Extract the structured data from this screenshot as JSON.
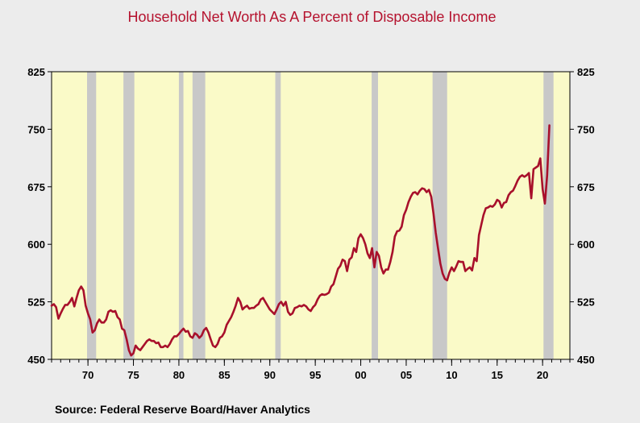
{
  "chart_data": {
    "type": "line",
    "title": "Household Net Worth As A Percent of Disposable Income",
    "source": "Source:   Federal Reserve Board/Haver Analytics",
    "xlabel": "",
    "ylabel": "",
    "xlim": [
      1966.0,
      2023.0
    ],
    "ylim": [
      450,
      825
    ],
    "yticks": [
      450,
      525,
      600,
      675,
      750,
      825
    ],
    "xticks": [
      {
        "value": 1970,
        "label": "70"
      },
      {
        "value": 1975,
        "label": "75"
      },
      {
        "value": 1980,
        "label": "80"
      },
      {
        "value": 1985,
        "label": "85"
      },
      {
        "value": 1990,
        "label": "90"
      },
      {
        "value": 1995,
        "label": "95"
      },
      {
        "value": 2000,
        "label": "00"
      },
      {
        "value": 2005,
        "label": "05"
      },
      {
        "value": 2010,
        "label": "10"
      },
      {
        "value": 2015,
        "label": "15"
      },
      {
        "value": 2020,
        "label": "20"
      }
    ],
    "recessions": [
      [
        1969.9,
        1970.9
      ],
      [
        1973.9,
        1975.1
      ],
      [
        1980.0,
        1980.5
      ],
      [
        1981.5,
        1982.9
      ],
      [
        1990.6,
        1991.2
      ],
      [
        2001.2,
        2001.9
      ],
      [
        2007.9,
        2009.5
      ],
      [
        2020.1,
        2021.2
      ]
    ],
    "series": [
      {
        "color": "#a8102b",
        "points": [
          [
            1966.0,
            520
          ],
          [
            1966.25,
            522
          ],
          [
            1966.5,
            518
          ],
          [
            1966.75,
            503
          ],
          [
            1967.0,
            510
          ],
          [
            1967.25,
            516
          ],
          [
            1967.5,
            521
          ],
          [
            1967.75,
            521
          ],
          [
            1968.0,
            525
          ],
          [
            1968.25,
            530
          ],
          [
            1968.5,
            519
          ],
          [
            1968.75,
            530
          ],
          [
            1969.0,
            540
          ],
          [
            1969.25,
            545
          ],
          [
            1969.5,
            540
          ],
          [
            1969.75,
            520
          ],
          [
            1970.0,
            510
          ],
          [
            1970.25,
            502
          ],
          [
            1970.5,
            485
          ],
          [
            1970.75,
            488
          ],
          [
            1971.0,
            497
          ],
          [
            1971.25,
            502
          ],
          [
            1971.5,
            498
          ],
          [
            1971.75,
            498
          ],
          [
            1972.0,
            502
          ],
          [
            1972.25,
            512
          ],
          [
            1972.5,
            514
          ],
          [
            1972.75,
            512
          ],
          [
            1973.0,
            513
          ],
          [
            1973.25,
            505
          ],
          [
            1973.5,
            502
          ],
          [
            1973.75,
            490
          ],
          [
            1974.0,
            488
          ],
          [
            1974.25,
            476
          ],
          [
            1974.5,
            462
          ],
          [
            1974.75,
            455
          ],
          [
            1975.0,
            458
          ],
          [
            1975.25,
            468
          ],
          [
            1975.5,
            464
          ],
          [
            1975.75,
            462
          ],
          [
            1976.0,
            466
          ],
          [
            1976.25,
            470
          ],
          [
            1976.5,
            474
          ],
          [
            1976.75,
            476
          ],
          [
            1977.0,
            474
          ],
          [
            1977.25,
            474
          ],
          [
            1977.5,
            471
          ],
          [
            1977.75,
            472
          ],
          [
            1978.0,
            466
          ],
          [
            1978.25,
            466
          ],
          [
            1978.5,
            468
          ],
          [
            1978.75,
            466
          ],
          [
            1979.0,
            470
          ],
          [
            1979.25,
            476
          ],
          [
            1979.5,
            480
          ],
          [
            1979.75,
            480
          ],
          [
            1980.0,
            483
          ],
          [
            1980.25,
            487
          ],
          [
            1980.5,
            490
          ],
          [
            1980.75,
            486
          ],
          [
            1981.0,
            487
          ],
          [
            1981.25,
            480
          ],
          [
            1981.5,
            478
          ],
          [
            1981.75,
            484
          ],
          [
            1982.0,
            482
          ],
          [
            1982.25,
            478
          ],
          [
            1982.5,
            481
          ],
          [
            1982.75,
            488
          ],
          [
            1983.0,
            491
          ],
          [
            1983.25,
            485
          ],
          [
            1983.5,
            476
          ],
          [
            1983.75,
            468
          ],
          [
            1984.0,
            466
          ],
          [
            1984.25,
            470
          ],
          [
            1984.5,
            478
          ],
          [
            1984.75,
            480
          ],
          [
            1985.0,
            485
          ],
          [
            1985.25,
            495
          ],
          [
            1985.5,
            500
          ],
          [
            1985.75,
            505
          ],
          [
            1986.0,
            512
          ],
          [
            1986.25,
            520
          ],
          [
            1986.5,
            530
          ],
          [
            1986.75,
            525
          ],
          [
            1987.0,
            515
          ],
          [
            1987.25,
            518
          ],
          [
            1987.5,
            520
          ],
          [
            1987.75,
            516
          ],
          [
            1988.0,
            517
          ],
          [
            1988.25,
            517
          ],
          [
            1988.5,
            520
          ],
          [
            1988.75,
            522
          ],
          [
            1989.0,
            528
          ],
          [
            1989.25,
            530
          ],
          [
            1989.5,
            525
          ],
          [
            1989.75,
            520
          ],
          [
            1990.0,
            515
          ],
          [
            1990.25,
            512
          ],
          [
            1990.5,
            509
          ],
          [
            1990.75,
            515
          ],
          [
            1991.0,
            522
          ],
          [
            1991.25,
            525
          ],
          [
            1991.5,
            520
          ],
          [
            1991.75,
            525
          ],
          [
            1992.0,
            512
          ],
          [
            1992.25,
            508
          ],
          [
            1992.5,
            510
          ],
          [
            1992.75,
            517
          ],
          [
            1993.0,
            518
          ],
          [
            1993.25,
            520
          ],
          [
            1993.5,
            519
          ],
          [
            1993.75,
            521
          ],
          [
            1994.0,
            519
          ],
          [
            1994.25,
            515
          ],
          [
            1994.5,
            513
          ],
          [
            1994.75,
            518
          ],
          [
            1995.0,
            521
          ],
          [
            1995.25,
            528
          ],
          [
            1995.5,
            533
          ],
          [
            1995.75,
            535
          ],
          [
            1996.0,
            534
          ],
          [
            1996.25,
            535
          ],
          [
            1996.5,
            537
          ],
          [
            1996.75,
            545
          ],
          [
            1997.0,
            548
          ],
          [
            1997.25,
            558
          ],
          [
            1997.5,
            568
          ],
          [
            1997.75,
            572
          ],
          [
            1998.0,
            580
          ],
          [
            1998.25,
            578
          ],
          [
            1998.5,
            565
          ],
          [
            1998.75,
            580
          ],
          [
            1999.0,
            583
          ],
          [
            1999.25,
            595
          ],
          [
            1999.5,
            590
          ],
          [
            1999.75,
            608
          ],
          [
            2000.0,
            613
          ],
          [
            2000.25,
            608
          ],
          [
            2000.5,
            600
          ],
          [
            2000.75,
            588
          ],
          [
            2001.0,
            582
          ],
          [
            2001.25,
            595
          ],
          [
            2001.5,
            570
          ],
          [
            2001.75,
            590
          ],
          [
            2002.0,
            585
          ],
          [
            2002.25,
            570
          ],
          [
            2002.5,
            562
          ],
          [
            2002.75,
            567
          ],
          [
            2003.0,
            567
          ],
          [
            2003.25,
            577
          ],
          [
            2003.5,
            590
          ],
          [
            2003.75,
            610
          ],
          [
            2004.0,
            617
          ],
          [
            2004.25,
            618
          ],
          [
            2004.5,
            623
          ],
          [
            2004.75,
            638
          ],
          [
            2005.0,
            645
          ],
          [
            2005.25,
            655
          ],
          [
            2005.5,
            662
          ],
          [
            2005.75,
            667
          ],
          [
            2006.0,
            668
          ],
          [
            2006.25,
            665
          ],
          [
            2006.5,
            670
          ],
          [
            2006.75,
            673
          ],
          [
            2007.0,
            672
          ],
          [
            2007.25,
            668
          ],
          [
            2007.5,
            671
          ],
          [
            2007.75,
            662
          ],
          [
            2008.0,
            640
          ],
          [
            2008.25,
            615
          ],
          [
            2008.5,
            595
          ],
          [
            2008.75,
            575
          ],
          [
            2009.0,
            562
          ],
          [
            2009.25,
            555
          ],
          [
            2009.5,
            553
          ],
          [
            2009.75,
            563
          ],
          [
            2010.0,
            570
          ],
          [
            2010.25,
            565
          ],
          [
            2010.5,
            571
          ],
          [
            2010.75,
            578
          ],
          [
            2011.0,
            577
          ],
          [
            2011.25,
            577
          ],
          [
            2011.5,
            565
          ],
          [
            2011.75,
            568
          ],
          [
            2012.0,
            570
          ],
          [
            2012.25,
            566
          ],
          [
            2012.5,
            582
          ],
          [
            2012.75,
            578
          ],
          [
            2013.0,
            612
          ],
          [
            2013.25,
            625
          ],
          [
            2013.5,
            638
          ],
          [
            2013.75,
            647
          ],
          [
            2014.0,
            648
          ],
          [
            2014.25,
            650
          ],
          [
            2014.5,
            649
          ],
          [
            2014.75,
            652
          ],
          [
            2015.0,
            658
          ],
          [
            2015.25,
            656
          ],
          [
            2015.5,
            648
          ],
          [
            2015.75,
            654
          ],
          [
            2016.0,
            655
          ],
          [
            2016.25,
            664
          ],
          [
            2016.5,
            668
          ],
          [
            2016.75,
            670
          ],
          [
            2017.0,
            676
          ],
          [
            2017.25,
            683
          ],
          [
            2017.5,
            688
          ],
          [
            2017.75,
            690
          ],
          [
            2018.0,
            688
          ],
          [
            2018.25,
            690
          ],
          [
            2018.5,
            693
          ],
          [
            2018.75,
            660
          ],
          [
            2019.0,
            698
          ],
          [
            2019.25,
            700
          ],
          [
            2019.5,
            702
          ],
          [
            2019.75,
            712
          ],
          [
            2020.0,
            672
          ],
          [
            2020.25,
            653
          ],
          [
            2020.5,
            690
          ],
          [
            2020.75,
            755
          ]
        ]
      }
    ]
  }
}
